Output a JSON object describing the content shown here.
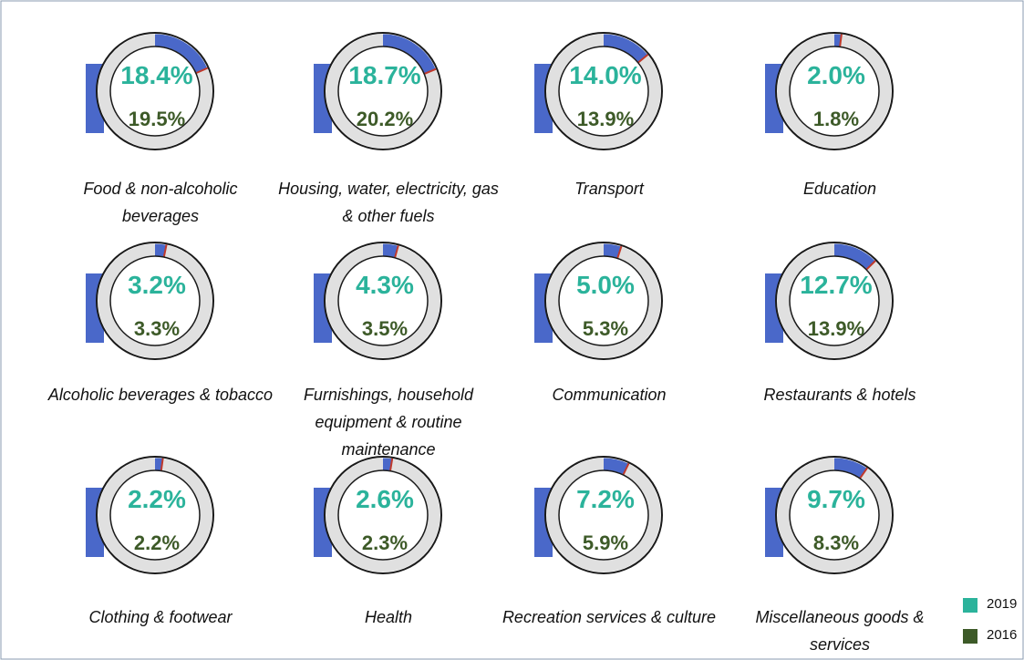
{
  "chart_data": {
    "type": "donut-grid",
    "categories": [
      "Food & non-alcoholic beverages",
      "Housing, water, electricity, gas & other fuels",
      "Transport",
      "Education",
      "Alcoholic beverages & tobacco",
      "Furnishings, household equipment & routine maintenance",
      "Communication",
      "Restaurants & hotels",
      "Clothing & footwear",
      "Health",
      "Recreation services & culture",
      "Miscellaneous goods & services"
    ],
    "series": [
      {
        "name": "2019",
        "color": "#2bb39b",
        "arc_color": "#4a68c9",
        "values": [
          18.4,
          18.7,
          14.0,
          2.0,
          3.2,
          4.3,
          5.0,
          12.7,
          2.2,
          2.6,
          7.2,
          9.7
        ],
        "value_labels": [
          "18.4%",
          "18.7%",
          "14.0%",
          "2.0%",
          "3.2%",
          "4.3%",
          "5.0%",
          "12.7%",
          "2.2%",
          "2.6%",
          "7.2%",
          "9.7%"
        ]
      },
      {
        "name": "2016",
        "color": "#3d5a28",
        "values": [
          19.5,
          20.2,
          13.9,
          1.8,
          3.3,
          3.5,
          5.3,
          13.9,
          2.2,
          2.3,
          5.9,
          8.3
        ],
        "value_labels": [
          "19.5%",
          "20.2%",
          "13.9%",
          "1.8%",
          "3.3%",
          "3.5%",
          "5.3%",
          "13.9%",
          "2.2%",
          "2.3%",
          "5.9%",
          "8.3%"
        ]
      }
    ],
    "ylim": [
      0,
      100
    ]
  }
}
